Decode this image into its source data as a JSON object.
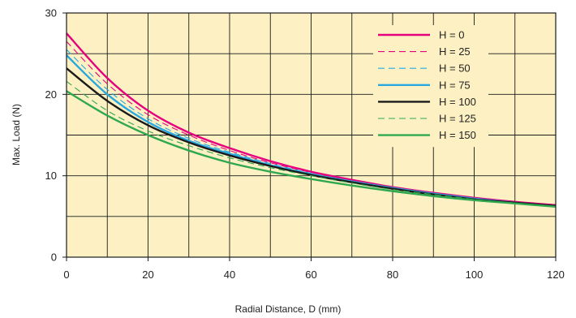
{
  "chart_data": {
    "type": "line",
    "xlabel": "Radial Distance, D (mm)",
    "ylabel": "Max. Load (N)",
    "xlim": [
      0,
      120
    ],
    "ylim": [
      0,
      30
    ],
    "x_ticks": [
      0,
      20,
      40,
      60,
      80,
      100,
      120
    ],
    "y_ticks": [
      0,
      10,
      20,
      30
    ],
    "grid": true,
    "plot_background": "#fdf1c4",
    "legend_position": "top-right",
    "x": [
      0,
      10,
      20,
      30,
      40,
      50,
      60,
      70,
      80,
      90,
      100,
      110,
      120
    ],
    "series": [
      {
        "name": "H = 0",
        "color": "#e6007e",
        "dash": "solid",
        "values": [
          27.5,
          22.0,
          18.0,
          15.3,
          13.4,
          11.8,
          10.5,
          9.5,
          8.6,
          7.9,
          7.3,
          6.8,
          6.4
        ]
      },
      {
        "name": "H = 25",
        "color": "#e6007e",
        "dash": "dashed",
        "values": [
          26.5,
          21.3,
          17.5,
          15.0,
          13.1,
          11.6,
          10.4,
          9.4,
          8.6,
          7.9,
          7.3,
          6.8,
          6.4
        ]
      },
      {
        "name": "H = 50",
        "color": "#29a8e0",
        "dash": "dashed",
        "values": [
          25.5,
          20.6,
          17.0,
          14.6,
          12.9,
          11.5,
          10.3,
          9.3,
          8.5,
          7.8,
          7.2,
          6.7,
          6.3
        ]
      },
      {
        "name": "H = 75",
        "color": "#29a8e0",
        "dash": "solid",
        "values": [
          24.8,
          20.0,
          16.6,
          14.3,
          12.7,
          11.3,
          10.2,
          9.3,
          8.5,
          7.8,
          7.2,
          6.7,
          6.3
        ]
      },
      {
        "name": "H = 100",
        "color": "#1a1a1a",
        "dash": "solid",
        "values": [
          23.2,
          19.2,
          16.2,
          14.1,
          12.5,
          11.2,
          10.1,
          9.2,
          8.4,
          7.7,
          7.1,
          6.7,
          6.3
        ]
      },
      {
        "name": "H = 125",
        "color": "#2fa84f",
        "dash": "dashed",
        "values": [
          21.6,
          18.0,
          15.5,
          13.7,
          12.2,
          11.0,
          10.0,
          9.1,
          8.3,
          7.7,
          7.1,
          6.6,
          6.2
        ]
      },
      {
        "name": "H = 150",
        "color": "#2fa84f",
        "dash": "solid",
        "values": [
          20.4,
          17.4,
          15.0,
          13.1,
          11.6,
          10.5,
          9.6,
          8.8,
          8.1,
          7.5,
          7.0,
          6.6,
          6.2
        ]
      }
    ]
  }
}
